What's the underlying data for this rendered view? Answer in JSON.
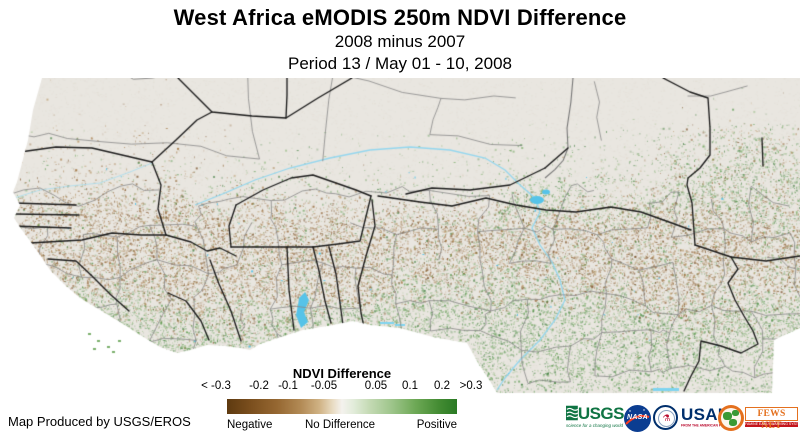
{
  "header": {
    "title": "West Africa eMODIS 250m NDVI Difference",
    "subtitle1": "2008 minus 2007",
    "subtitle2": "Period 13 / May 01 - 10, 2008"
  },
  "legend": {
    "title": "NDVI Difference",
    "ticks": [
      "< -0.3",
      "-0.2",
      "-0.1",
      "-0.05",
      "0.05",
      "0.1",
      "0.2",
      ">0.3"
    ],
    "labels": {
      "negative": "Negative",
      "no_difference": "No Difference",
      "positive": "Positive"
    }
  },
  "credit": "Map Produced by USGS/EROS",
  "logos": {
    "usgs": {
      "name": "USGS",
      "tagline": "science for a changing world"
    },
    "nasa": {
      "name": "NASA"
    },
    "usaid": {
      "name": "USAID",
      "tagline": "FROM THE AMERICAN PEOPLE"
    },
    "fewsnet": {
      "name": "FEWS NET",
      "tagline": "FAMINE EARLY WARNING SYSTEMS NETWORK"
    }
  },
  "colors": {
    "land_base": "#e9e6e0",
    "water": "#56c3e8",
    "river": "#8fd6ef",
    "border_country": "#1b1b1b",
    "border_admin": "#888888",
    "ndvi_negative_dark": "#6e4116",
    "ndvi_positive_dark": "#2a7a24",
    "usgs_green": "#0f7443",
    "nasa_blue": "#0b3d91",
    "usaid_blue": "#002f6c",
    "usaid_red": "#ba0c2f",
    "fews_orange": "#e4701e",
    "fews_red": "#c4161c"
  }
}
